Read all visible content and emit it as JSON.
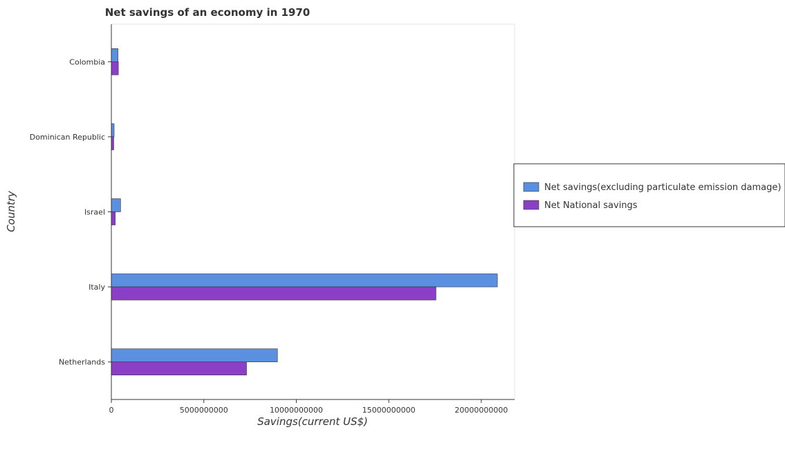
{
  "chart_data": {
    "type": "bar",
    "orientation": "horizontal",
    "title": "Net savings of an economy in 1970",
    "xlabel": "Savings(current US$)",
    "ylabel": "Country",
    "categories": [
      "Colombia",
      "Dominican Republic",
      "Israel",
      "Italy",
      "Netherlands"
    ],
    "series": [
      {
        "name": "Net savings(excluding particulate emission damage)",
        "color": "#5b8fe0",
        "values": [
          360000000,
          150000000,
          500000000,
          20870000000,
          8980000000
        ]
      },
      {
        "name": "Net National savings",
        "color": "#8b3fc6",
        "values": [
          380000000,
          130000000,
          210000000,
          17550000000,
          7310000000
        ]
      }
    ],
    "xlim": [
      0,
      21800000000
    ],
    "xticks": [
      0,
      5000000000,
      10000000000,
      15000000000,
      20000000000
    ],
    "xtick_labels": [
      "0",
      "5000000000",
      "10000000000",
      "15000000000",
      "20000000000"
    ],
    "grid": false,
    "legend_position": "right"
  }
}
